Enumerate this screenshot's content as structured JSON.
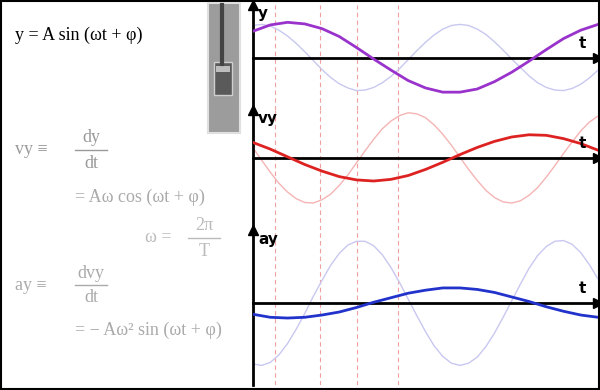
{
  "formulas": [
    {
      "text": "y = A sin (ωt + φ)",
      "color": "#000000"
    },
    {
      "lhs": "vy ≡",
      "numerator": "dy",
      "denominator": "dt",
      "color": "#999999"
    },
    {
      "text": "= Aω cos (ωt + φ)",
      "color": "#aaaaaa"
    },
    {
      "lhs": "ω =",
      "numerator": "2π",
      "denominator": "T",
      "color": "#bbbbbb"
    },
    {
      "lhs": "ay ≡",
      "numerator": "dvy",
      "denominator": "dt",
      "color": "#aaaaaa"
    },
    {
      "text": "= − Aω² sin (ωt + φ)",
      "color": "#aaaaaa"
    }
  ],
  "time_marks": [
    0.64,
    1.94,
    3.01,
    4.2
  ],
  "chart_data": [
    {
      "type": "line",
      "x_label": "t",
      "y_label": "y",
      "xlim": [
        0,
        10
      ],
      "ylim": [
        -1,
        1
      ],
      "tick_labels": false,
      "x": [
        0,
        0.5,
        1,
        1.5,
        2,
        2.5,
        3,
        3.5,
        4,
        4.5,
        5,
        5.5,
        6,
        6.5,
        7,
        7.5,
        8,
        8.5,
        9,
        9.5,
        10
      ],
      "series": [
        {
          "color": "#c8c8f0",
          "x": [
            0,
            0.25,
            0.5,
            0.75,
            1,
            1.25,
            1.5,
            1.75,
            2,
            2.25,
            2.5,
            2.75,
            3,
            3.25,
            3.5,
            3.75,
            4,
            4.25,
            4.5,
            4.75,
            5,
            5.25,
            5.5,
            5.75,
            6,
            6.25,
            6.5,
            6.75,
            7,
            7.25,
            7.5,
            7.75,
            8,
            8.25,
            8.5,
            8.75,
            9,
            9.25,
            9.5,
            9.75,
            10
          ],
          "values": [
            0.61,
            0.63,
            0.6,
            0.52,
            0.41,
            0.27,
            0.11,
            -0.06,
            -0.23,
            -0.38,
            -0.5,
            -0.58,
            -0.63,
            -0.62,
            -0.57,
            -0.48,
            -0.36,
            -0.21,
            -0.04,
            0.13,
            0.29,
            0.43,
            0.54,
            0.61,
            0.63,
            0.61,
            0.54,
            0.44,
            0.3,
            0.14,
            -0.03,
            -0.19,
            -0.35,
            -0.48,
            -0.57,
            -0.62,
            -0.63,
            -0.59,
            -0.51,
            -0.39,
            -0.24
          ]
        },
        {
          "color": "#9933cc",
          "values": [
            0.5,
            0.62,
            0.67,
            0.64,
            0.55,
            0.4,
            0.19,
            -0.03,
            -0.24,
            -0.44,
            -0.58,
            -0.66,
            -0.66,
            -0.6,
            -0.46,
            -0.28,
            -0.07,
            0.15,
            0.36,
            0.52,
            0.63
          ]
        }
      ]
    },
    {
      "type": "line",
      "x_label": "t",
      "y_label": "vy",
      "xlim": [
        0,
        10
      ],
      "ylim": [
        -1.31,
        0.87
      ],
      "tick_labels": false,
      "x": [
        0,
        0.5,
        1,
        1.5,
        2,
        2.5,
        3,
        3.5,
        4,
        4.5,
        5,
        5.5,
        6,
        6.5,
        7,
        7.5,
        8,
        8.5,
        9,
        9.5,
        10
      ],
      "series": [
        {
          "color": "#f5b4b4",
          "x": [
            0,
            0.25,
            0.5,
            0.75,
            1,
            1.25,
            1.5,
            1.75,
            2,
            2.25,
            2.5,
            2.75,
            3,
            3.25,
            3.5,
            3.75,
            4,
            4.25,
            4.5,
            4.75,
            5,
            5.25,
            5.5,
            5.75,
            6,
            6.25,
            6.5,
            6.75,
            7,
            7.25,
            7.5,
            7.75,
            8,
            8.25,
            8.5,
            8.75,
            9,
            9.25,
            9.5,
            9.75,
            10
          ],
          "values": [
            0.18,
            -0.04,
            -0.26,
            -0.46,
            -0.62,
            -0.74,
            -0.81,
            -0.82,
            -0.76,
            -0.66,
            -0.5,
            -0.31,
            -0.09,
            0.13,
            0.34,
            0.53,
            0.67,
            0.77,
            0.82,
            0.8,
            0.73,
            0.6,
            0.43,
            0.23,
            0.01,
            -0.21,
            -0.41,
            -0.59,
            -0.72,
            -0.8,
            -0.82,
            -0.78,
            -0.68,
            -0.54,
            -0.35,
            -0.14,
            0.08,
            0.29,
            0.49,
            0.65,
            0.76
          ]
        },
        {
          "color": "#dd2222",
          "values": [
            0.28,
            0.16,
            0.02,
            -0.12,
            -0.24,
            -0.34,
            -0.4,
            -0.42,
            -0.39,
            -0.32,
            -0.21,
            -0.08,
            0.06,
            0.19,
            0.3,
            0.38,
            0.42,
            0.41,
            0.35,
            0.26,
            0.14
          ]
        }
      ]
    },
    {
      "type": "line",
      "x_label": "t",
      "y_label": "ay",
      "xlim": [
        0,
        10
      ],
      "ylim": [
        -1.09,
        0.97
      ],
      "tick_labels": false,
      "x": [
        0,
        0.5,
        1,
        1.5,
        2,
        2.5,
        3,
        3.5,
        4,
        4.5,
        5,
        5.5,
        6,
        6.5,
        7,
        7.5,
        8,
        8.5,
        9,
        9.5,
        10
      ],
      "series": [
        {
          "color": "#c8c8f0",
          "x": [
            0,
            0.25,
            0.5,
            0.75,
            1,
            1.25,
            1.5,
            1.75,
            2,
            2.25,
            2.5,
            2.75,
            3,
            3.25,
            3.5,
            3.75,
            4,
            4.25,
            4.5,
            4.75,
            5,
            5.25,
            5.5,
            5.75,
            6,
            6.25,
            6.5,
            6.75,
            7,
            7.25,
            7.5,
            7.75,
            8,
            8.25,
            8.5,
            8.75,
            9,
            9.25,
            9.5,
            9.75,
            10
          ],
          "values": [
            -0.81,
            -0.83,
            -0.79,
            -0.69,
            -0.54,
            -0.35,
            -0.14,
            0.09,
            0.3,
            0.5,
            0.66,
            0.77,
            0.82,
            0.82,
            0.76,
            0.64,
            0.47,
            0.27,
            0.05,
            -0.17,
            -0.38,
            -0.57,
            -0.71,
            -0.8,
            -0.83,
            -0.8,
            -0.72,
            -0.58,
            -0.4,
            -0.19,
            0.03,
            0.25,
            0.46,
            0.63,
            0.75,
            0.82,
            0.83,
            0.78,
            0.67,
            0.51,
            0.32
          ]
        },
        {
          "color": "#2233cc",
          "values": [
            -0.15,
            -0.19,
            -0.2,
            -0.19,
            -0.16,
            -0.12,
            -0.06,
            0.01,
            0.07,
            0.13,
            0.17,
            0.2,
            0.2,
            0.18,
            0.14,
            0.08,
            0.02,
            -0.05,
            -0.11,
            -0.16,
            -0.19
          ]
        }
      ]
    }
  ]
}
